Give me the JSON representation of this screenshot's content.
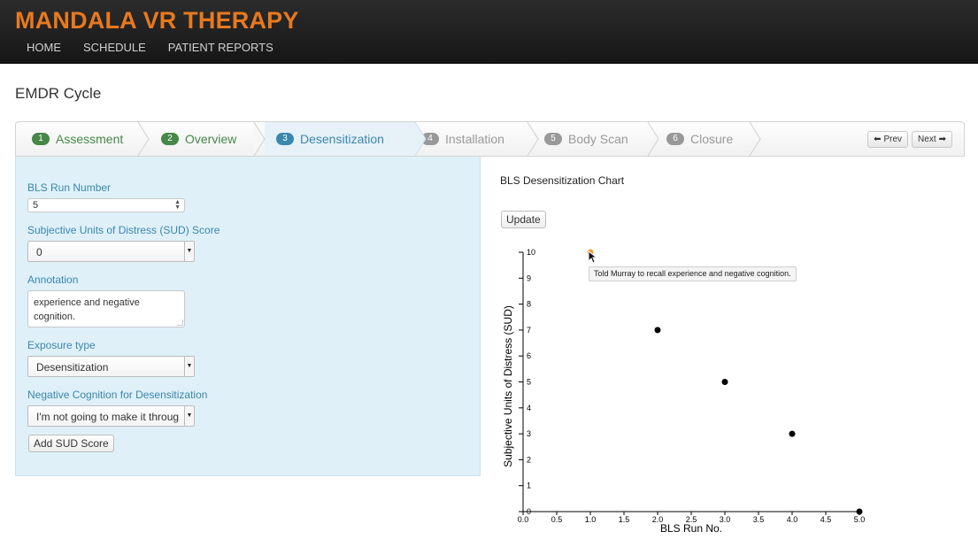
{
  "app": {
    "brand": "MANDALA VR THERAPY",
    "nav": [
      "HOME",
      "SCHEDULE",
      "PATIENT REPORTS"
    ]
  },
  "page": {
    "title": "EMDR Cycle"
  },
  "steps": [
    {
      "num": "1",
      "label": "Assessment",
      "state": "done"
    },
    {
      "num": "2",
      "label": "Overview",
      "state": "done"
    },
    {
      "num": "3",
      "label": "Desensitization",
      "state": "active"
    },
    {
      "num": "4",
      "label": "Installation",
      "state": "todo"
    },
    {
      "num": "5",
      "label": "Body Scan",
      "state": "todo"
    },
    {
      "num": "6",
      "label": "Closure",
      "state": "todo"
    }
  ],
  "pager": {
    "prev": "Prev",
    "next": "Next"
  },
  "form": {
    "bls_run": {
      "label": "BLS Run Number",
      "value": "5"
    },
    "sud": {
      "label": "Subjective Units of Distress (SUD) Score",
      "value": "0"
    },
    "annotation": {
      "label": "Annotation",
      "value": "experience and negative cognition."
    },
    "exposure": {
      "label": "Exposure type",
      "value": "Desensitization"
    },
    "negative_cognition": {
      "label": "Negative Cognition for Desensitization",
      "value": "I'm not going to make it throug"
    },
    "submit": "Add SUD Score"
  },
  "chart_panel": {
    "title": "BLS Desensitization Chart",
    "update": "Update",
    "tooltip": "Told Murray to recall experience and negative cognition."
  },
  "chart_data": {
    "type": "scatter",
    "xlabel": "BLS Run No.",
    "ylabel": "Subjective Units of Distress (SUD)",
    "xlim": [
      0,
      5
    ],
    "ylim": [
      0,
      10
    ],
    "xticks": [
      "0.0",
      "0.5",
      "1.0",
      "1.5",
      "2.0",
      "2.5",
      "3.0",
      "3.5",
      "4.0",
      "4.5",
      "5.0"
    ],
    "yticks": [
      "0",
      "1",
      "2",
      "3",
      "4",
      "5",
      "6",
      "7",
      "8",
      "9",
      "10"
    ],
    "points": [
      {
        "x": 1,
        "y": 10,
        "highlight": true
      },
      {
        "x": 2,
        "y": 7
      },
      {
        "x": 3,
        "y": 5
      },
      {
        "x": 4,
        "y": 3
      },
      {
        "x": 5,
        "y": 0
      }
    ],
    "point_color": "#000000",
    "highlight_color": "#f0a030"
  }
}
